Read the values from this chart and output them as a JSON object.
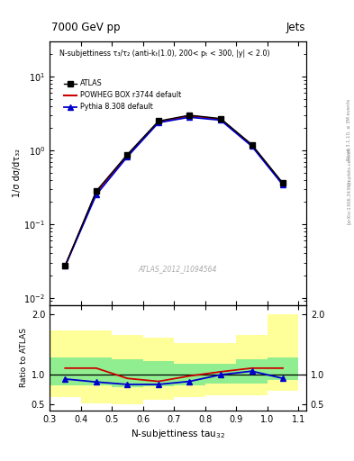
{
  "title_left": "7000 GeV pp",
  "title_right": "Jets",
  "annotation": "N-subjettiness τ₃/τ₂ (anti-kₜ(1.0), 200< pₜ < 300, |y| < 2.0)",
  "watermark": "ATLAS_2012_I1094564",
  "ylabel_main": "1/σ dσ/dτ₃₂",
  "ylabel_ratio": "Ratio to ATLAS",
  "xlabel": "N-subjettiness tau$_{32}$",
  "right_label": "Rivet 3.1.10, ≥ 3M events",
  "arxiv_label": "[arXiv:1306.3436]",
  "mcplots_label": "mcplots.cern.ch",
  "x_main": [
    0.35,
    0.45,
    0.55,
    0.65,
    0.75,
    0.85,
    0.95,
    1.05
  ],
  "atlas_main": [
    0.027,
    0.28,
    0.88,
    2.5,
    3.0,
    2.7,
    1.2,
    0.36
  ],
  "powheg_main": [
    0.027,
    0.27,
    0.85,
    2.4,
    2.95,
    2.65,
    1.18,
    0.35
  ],
  "pythia_main": [
    0.027,
    0.25,
    0.82,
    2.38,
    2.82,
    2.57,
    1.14,
    0.34
  ],
  "x_ratio": [
    0.35,
    0.45,
    0.55,
    0.65,
    0.75,
    0.85,
    0.95,
    1.05
  ],
  "powheg_ratio": [
    1.1,
    1.1,
    0.93,
    0.88,
    0.97,
    1.04,
    1.1,
    1.1
  ],
  "pythia_ratio": [
    0.92,
    0.87,
    0.83,
    0.83,
    0.88,
    0.99,
    1.05,
    0.93
  ],
  "band_edges": [
    0.3,
    0.4,
    0.5,
    0.6,
    0.7,
    0.8,
    0.9,
    1.0,
    1.1
  ],
  "green_lo": [
    0.82,
    0.82,
    0.78,
    0.8,
    0.82,
    0.85,
    0.85,
    0.9
  ],
  "green_hi": [
    1.28,
    1.28,
    1.25,
    1.22,
    1.18,
    1.18,
    1.25,
    1.28
  ],
  "yellow_lo": [
    0.62,
    0.52,
    0.5,
    0.58,
    0.62,
    0.65,
    0.65,
    0.72
  ],
  "yellow_hi": [
    1.72,
    1.72,
    1.65,
    1.6,
    1.52,
    1.52,
    1.65,
    2.0
  ],
  "xlim": [
    0.3,
    1.125
  ],
  "ylim_main": [
    0.008,
    30
  ],
  "ylim_ratio": [
    0.4,
    2.15
  ],
  "ratio_yticks": [
    0.5,
    1.0,
    2.0
  ],
  "color_atlas": "#000000",
  "color_powheg": "#cc0000",
  "color_pythia": "#0000cc",
  "color_green": "#90ee90",
  "color_yellow": "#ffff99",
  "bg_color": "#ffffff"
}
